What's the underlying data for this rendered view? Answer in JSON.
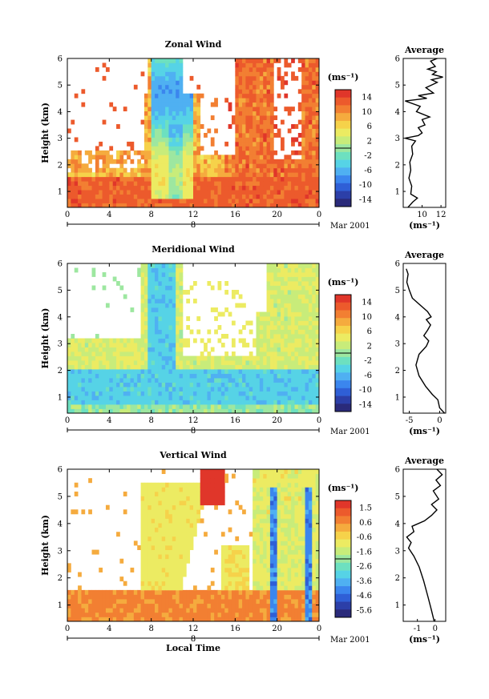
{
  "chart_data": [
    {
      "type": "heatmap",
      "title": "Zonal Wind",
      "ylabel": "Height (km)",
      "xlabel": "",
      "date_label": "Mar 2001",
      "day_label": "8",
      "x_ticks": [
        "0",
        "4",
        "8",
        "12",
        "16",
        "20",
        "0"
      ],
      "x_range": [
        0,
        24
      ],
      "y_ticks": [
        "1",
        "2",
        "3",
        "4",
        "5",
        "6"
      ],
      "y_range": [
        0.4,
        6.0
      ],
      "colorbar": {
        "unit": "(ms⁻¹)",
        "range": [
          -16,
          16
        ],
        "ticks": [
          "14",
          "10",
          "6",
          "2",
          "-2",
          "-6",
          "-10",
          "-14"
        ]
      },
      "profile": {
        "title": "Average",
        "xlabel": "(ms⁻¹)",
        "x_ticks": [
          "10",
          "12"
        ],
        "x_range": [
          8,
          12.5
        ],
        "y_ticks": [
          "1",
          "2",
          "3",
          "4",
          "5",
          "6"
        ],
        "y_range": [
          0.4,
          6.0
        ],
        "points": [
          [
            8.5,
            0.4
          ],
          [
            9.0,
            0.6
          ],
          [
            9.5,
            0.75
          ],
          [
            8.8,
            0.9
          ],
          [
            8.9,
            1.2
          ],
          [
            8.6,
            1.5
          ],
          [
            8.8,
            1.8
          ],
          [
            8.7,
            2.1
          ],
          [
            9.0,
            2.4
          ],
          [
            8.9,
            2.7
          ],
          [
            9.3,
            2.9
          ],
          [
            8.2,
            3.0
          ],
          [
            9.6,
            3.1
          ],
          [
            10.0,
            3.2
          ],
          [
            9.6,
            3.4
          ],
          [
            10.3,
            3.5
          ],
          [
            10.0,
            3.7
          ],
          [
            10.8,
            3.8
          ],
          [
            9.4,
            4.0
          ],
          [
            9.8,
            4.2
          ],
          [
            8.2,
            4.4
          ],
          [
            10.5,
            4.5
          ],
          [
            9.6,
            4.6
          ],
          [
            11.2,
            4.7
          ],
          [
            10.4,
            4.9
          ],
          [
            11.0,
            5.0
          ],
          [
            11.6,
            5.1
          ],
          [
            11.0,
            5.2
          ],
          [
            12.2,
            5.3
          ],
          [
            11.1,
            5.4
          ],
          [
            11.5,
            5.5
          ],
          [
            10.6,
            5.6
          ],
          [
            11.4,
            5.7
          ],
          [
            10.9,
            5.9
          ],
          [
            11.6,
            6.0
          ]
        ]
      }
    },
    {
      "type": "heatmap",
      "title": "Meridional Wind",
      "ylabel": "Height (km)",
      "xlabel": "",
      "date_label": "Mar 2001",
      "day_label": "8",
      "x_ticks": [
        "0",
        "4",
        "8",
        "12",
        "16",
        "20",
        "0"
      ],
      "x_range": [
        0,
        24
      ],
      "y_ticks": [
        "1",
        "2",
        "3",
        "4",
        "5",
        "6"
      ],
      "y_range": [
        0.4,
        6.0
      ],
      "colorbar": {
        "unit": "(ms⁻¹)",
        "range": [
          -16,
          16
        ],
        "ticks": [
          "14",
          "10",
          "6",
          "2",
          "-2",
          "-6",
          "-10",
          "-14"
        ]
      },
      "profile": {
        "title": "Average",
        "xlabel": "(ms⁻¹)",
        "x_ticks": [
          "-5",
          "0"
        ],
        "x_range": [
          -6,
          1
        ],
        "y_ticks": [
          "1",
          "2",
          "3",
          "4",
          "5",
          "6"
        ],
        "y_range": [
          0.4,
          6.0
        ],
        "points": [
          [
            0.8,
            0.4
          ],
          [
            0.0,
            0.6
          ],
          [
            -0.3,
            0.9
          ],
          [
            -1.2,
            1.1
          ],
          [
            -2.3,
            1.4
          ],
          [
            -3.4,
            1.8
          ],
          [
            -3.9,
            2.2
          ],
          [
            -3.4,
            2.6
          ],
          [
            -2.2,
            2.9
          ],
          [
            -1.8,
            3.1
          ],
          [
            -2.6,
            3.3
          ],
          [
            -2.0,
            3.5
          ],
          [
            -1.5,
            3.7
          ],
          [
            -2.2,
            3.9
          ],
          [
            -1.4,
            4.0
          ],
          [
            -2.0,
            4.2
          ],
          [
            -3.0,
            4.4
          ],
          [
            -4.5,
            4.7
          ],
          [
            -5.0,
            5.0
          ],
          [
            -5.4,
            5.3
          ],
          [
            -5.2,
            5.6
          ],
          [
            -5.5,
            5.8
          ]
        ]
      }
    },
    {
      "type": "heatmap",
      "title": "Vertical Wind",
      "ylabel": "Height (km)",
      "xlabel": "Local Time",
      "date_label": "Mar 2001",
      "day_label": "8",
      "x_ticks": [
        "0",
        "4",
        "8",
        "12",
        "16",
        "20",
        "0"
      ],
      "x_range": [
        0,
        24
      ],
      "y_ticks": [
        "1",
        "2",
        "3",
        "4",
        "5",
        "6"
      ],
      "y_range": [
        0.4,
        6.0
      ],
      "colorbar": {
        "unit": "(ms⁻¹)",
        "range": [
          -6.0,
          2.0
        ],
        "ticks": [
          "1.5",
          "0.6",
          "-0.6",
          "-1.6",
          "-2.6",
          "-3.6",
          "-4.6",
          "-5.6"
        ]
      },
      "profile": {
        "title": "Average",
        "xlabel": "(ms⁻¹)",
        "x_ticks": [
          "-1",
          "0"
        ],
        "x_range": [
          -1.8,
          0.6
        ],
        "y_ticks": [
          "1",
          "2",
          "3",
          "4",
          "5",
          "6"
        ],
        "y_range": [
          0.4,
          6.0
        ],
        "points": [
          [
            -0.05,
            0.4
          ],
          [
            -0.2,
            0.8
          ],
          [
            -0.4,
            1.3
          ],
          [
            -0.65,
            1.9
          ],
          [
            -0.9,
            2.4
          ],
          [
            -1.2,
            2.8
          ],
          [
            -1.5,
            3.1
          ],
          [
            -1.35,
            3.3
          ],
          [
            -1.6,
            3.5
          ],
          [
            -1.2,
            3.7
          ],
          [
            -1.3,
            3.9
          ],
          [
            -0.6,
            4.1
          ],
          [
            -0.2,
            4.3
          ],
          [
            0.1,
            4.5
          ],
          [
            -0.2,
            4.7
          ],
          [
            0.2,
            4.9
          ],
          [
            -0.1,
            5.2
          ],
          [
            0.3,
            5.4
          ],
          [
            0.05,
            5.6
          ],
          [
            0.4,
            5.8
          ],
          [
            0.1,
            6.0
          ]
        ]
      }
    }
  ]
}
